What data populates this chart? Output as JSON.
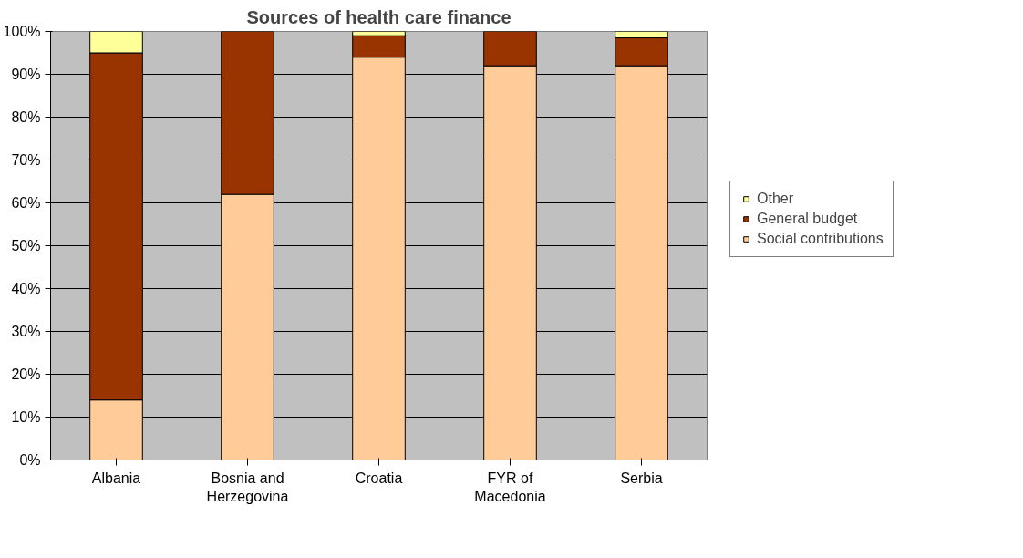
{
  "chart_data": {
    "type": "bar",
    "title": "Sources of health care finance",
    "stacked": true,
    "categories": [
      "Albania",
      "Bosnia and Herzegovina",
      "Croatia",
      "FYR of Macedonia",
      "Serbia"
    ],
    "series": [
      {
        "name": "Social contributions",
        "color": "#ffcc99",
        "values": [
          14,
          62,
          94,
          92,
          92
        ]
      },
      {
        "name": "General budget",
        "color": "#993300",
        "values": [
          81,
          38,
          5,
          8,
          6.5
        ]
      },
      {
        "name": "Other",
        "color": "#ffff99",
        "values": [
          5,
          0,
          1,
          0,
          1.5
        ]
      }
    ],
    "ylim": [
      0,
      100
    ],
    "yticks": [
      {
        "value": 0,
        "label": "0%"
      },
      {
        "value": 10,
        "label": "10%"
      },
      {
        "value": 20,
        "label": "20%"
      },
      {
        "value": 30,
        "label": "30%"
      },
      {
        "value": 40,
        "label": "40%"
      },
      {
        "value": 50,
        "label": "50%"
      },
      {
        "value": 60,
        "label": "60%"
      },
      {
        "value": 70,
        "label": "70%"
      },
      {
        "value": 80,
        "label": "80%"
      },
      {
        "value": 90,
        "label": "90%"
      },
      {
        "value": 100,
        "label": "100%"
      }
    ],
    "grid": "y",
    "legend": "right"
  }
}
